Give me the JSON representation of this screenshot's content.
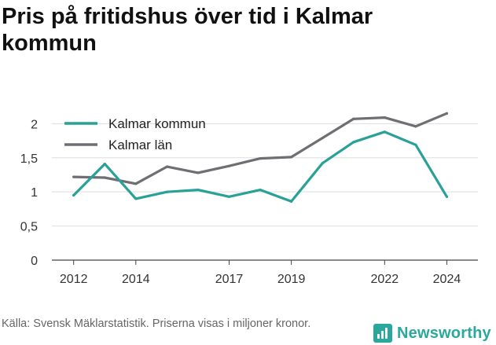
{
  "title": "Pris på fritidshus över tid i Kalmar kommun",
  "source": "Källa: Svensk Mäklarstatistik. Priserna visas i miljoner kronor.",
  "brand": {
    "name": "Newsworthy",
    "color": "#2ba89c"
  },
  "chart_data": {
    "type": "line",
    "x": [
      2012,
      2013,
      2014,
      2015,
      2016,
      2017,
      2018,
      2019,
      2020,
      2021,
      2022,
      2023,
      2024
    ],
    "x_ticks": [
      "2012",
      "2014",
      "2017",
      "2019",
      "2022",
      "2024"
    ],
    "y_ticks": [
      "0",
      "0,5",
      "1",
      "1,5",
      "2"
    ],
    "ylim": [
      0,
      2.2
    ],
    "grid": true,
    "legend_position": "top-left",
    "series": [
      {
        "name": "Kalmar kommun",
        "color": "#2aa198",
        "values": [
          0.95,
          1.41,
          0.9,
          1.0,
          1.03,
          0.93,
          1.03,
          0.86,
          1.42,
          1.73,
          1.88,
          1.69,
          0.93
        ]
      },
      {
        "name": "Kalmar län",
        "color": "#6e6e73",
        "values": [
          1.22,
          1.21,
          1.12,
          1.37,
          1.28,
          1.38,
          1.49,
          1.51,
          1.79,
          2.07,
          2.09,
          1.96,
          2.15
        ]
      }
    ]
  }
}
